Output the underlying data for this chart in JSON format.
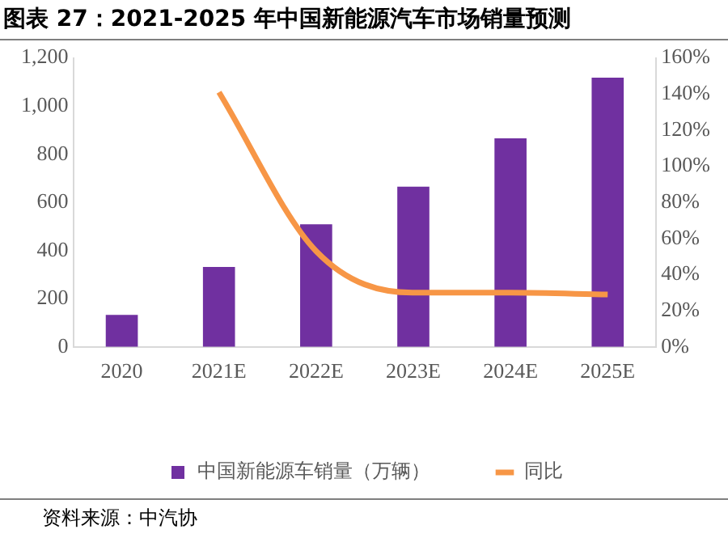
{
  "chart_data": {
    "type": "bar",
    "title": "图表 27：2021-2025 年中国新能源汽车市场销量预测",
    "categories": [
      "2020",
      "2021E",
      "2022E",
      "2023E",
      "2024E",
      "2025E"
    ],
    "series": [
      {
        "name": "中国新能源车销量（万辆）",
        "color": "#7030a0",
        "values": [
          133,
          332,
          509,
          665,
          866,
          1118
        ]
      },
      {
        "name": "同比",
        "type": "line",
        "axis": "y2",
        "color": "#f79646",
        "values": [
          null,
          141,
          53,
          30,
          30,
          29
        ]
      }
    ],
    "ylim": [
      0,
      1200
    ],
    "yticks": [
      0,
      200,
      400,
      600,
      800,
      {
        "value": 1000,
        "label": "1,000"
      },
      {
        "value": 1200,
        "label": "1,200"
      }
    ],
    "y2lim": [
      0,
      160
    ],
    "y2ticks": [
      {
        "value": 0,
        "label": "0%"
      },
      {
        "value": 20,
        "label": "20%"
      },
      {
        "value": 40,
        "label": "40%"
      },
      {
        "value": 60,
        "label": "60%"
      },
      {
        "value": 80,
        "label": "80%"
      },
      {
        "value": 100,
        "label": "100%"
      },
      {
        "value": 120,
        "label": "120%"
      },
      {
        "value": 140,
        "label": "140%"
      },
      {
        "value": 160,
        "label": "160%"
      }
    ],
    "grid": false,
    "legend": "bottom",
    "marker": "none",
    "annotations": [
      "资料来源：中汽协"
    ]
  }
}
